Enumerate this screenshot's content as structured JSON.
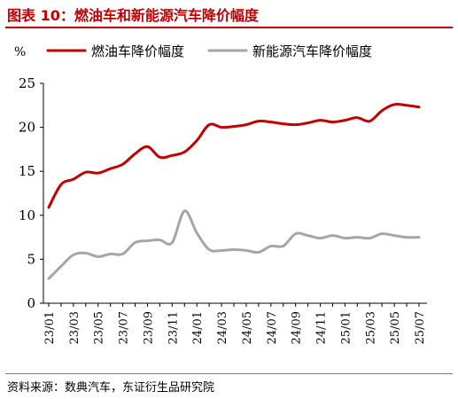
{
  "figure": {
    "title": "图表 10：燃油车和新能源汽车降价幅度",
    "source": "资料来源：数典汽车，东证衍生品研究院"
  },
  "colors": {
    "title": "#c00000",
    "series_fuel": "#c00000",
    "series_nev": "#a6a6a6"
  },
  "chart_data": {
    "type": "line",
    "unit_label": "%",
    "ylim": [
      0,
      25
    ],
    "yticks": [
      0,
      5,
      10,
      15,
      20,
      25
    ],
    "grid": false,
    "legend_position": "top",
    "x_tick_labels": [
      "23/01",
      "23/03",
      "23/05",
      "23/07",
      "23/09",
      "23/11",
      "24/01",
      "24/03",
      "24/05",
      "24/07",
      "24/09",
      "24/11",
      "25/01",
      "25/03",
      "25/05",
      "25/07"
    ],
    "x": [
      "23/01",
      "23/02",
      "23/03",
      "23/04",
      "23/05",
      "23/06",
      "23/07",
      "23/08",
      "23/09",
      "23/10",
      "23/11",
      "23/12",
      "24/01",
      "24/02",
      "24/03",
      "24/04",
      "24/05",
      "24/06",
      "24/07",
      "24/08",
      "24/09",
      "24/10",
      "24/11",
      "24/12",
      "25/01",
      "25/02",
      "25/03",
      "25/04",
      "25/05",
      "25/06",
      "25/07"
    ],
    "series": [
      {
        "name": "燃油车降价幅度",
        "values": [
          10.9,
          13.5,
          14.1,
          14.9,
          14.8,
          15.3,
          15.8,
          17.0,
          17.8,
          16.6,
          16.8,
          17.2,
          18.5,
          20.3,
          20.0,
          20.1,
          20.3,
          20.7,
          20.6,
          20.4,
          20.3,
          20.5,
          20.8,
          20.6,
          20.8,
          21.1,
          20.7,
          21.9,
          22.6,
          22.5,
          22.3
        ]
      },
      {
        "name": "新能源汽车降价幅度",
        "values": [
          2.8,
          4.2,
          5.5,
          5.7,
          5.3,
          5.6,
          5.6,
          6.9,
          7.1,
          7.2,
          6.9,
          10.5,
          8.0,
          6.1,
          6.0,
          6.1,
          6.0,
          5.8,
          6.5,
          6.5,
          7.9,
          7.7,
          7.4,
          7.7,
          7.4,
          7.5,
          7.4,
          7.9,
          7.7,
          7.5,
          7.5
        ]
      }
    ]
  }
}
